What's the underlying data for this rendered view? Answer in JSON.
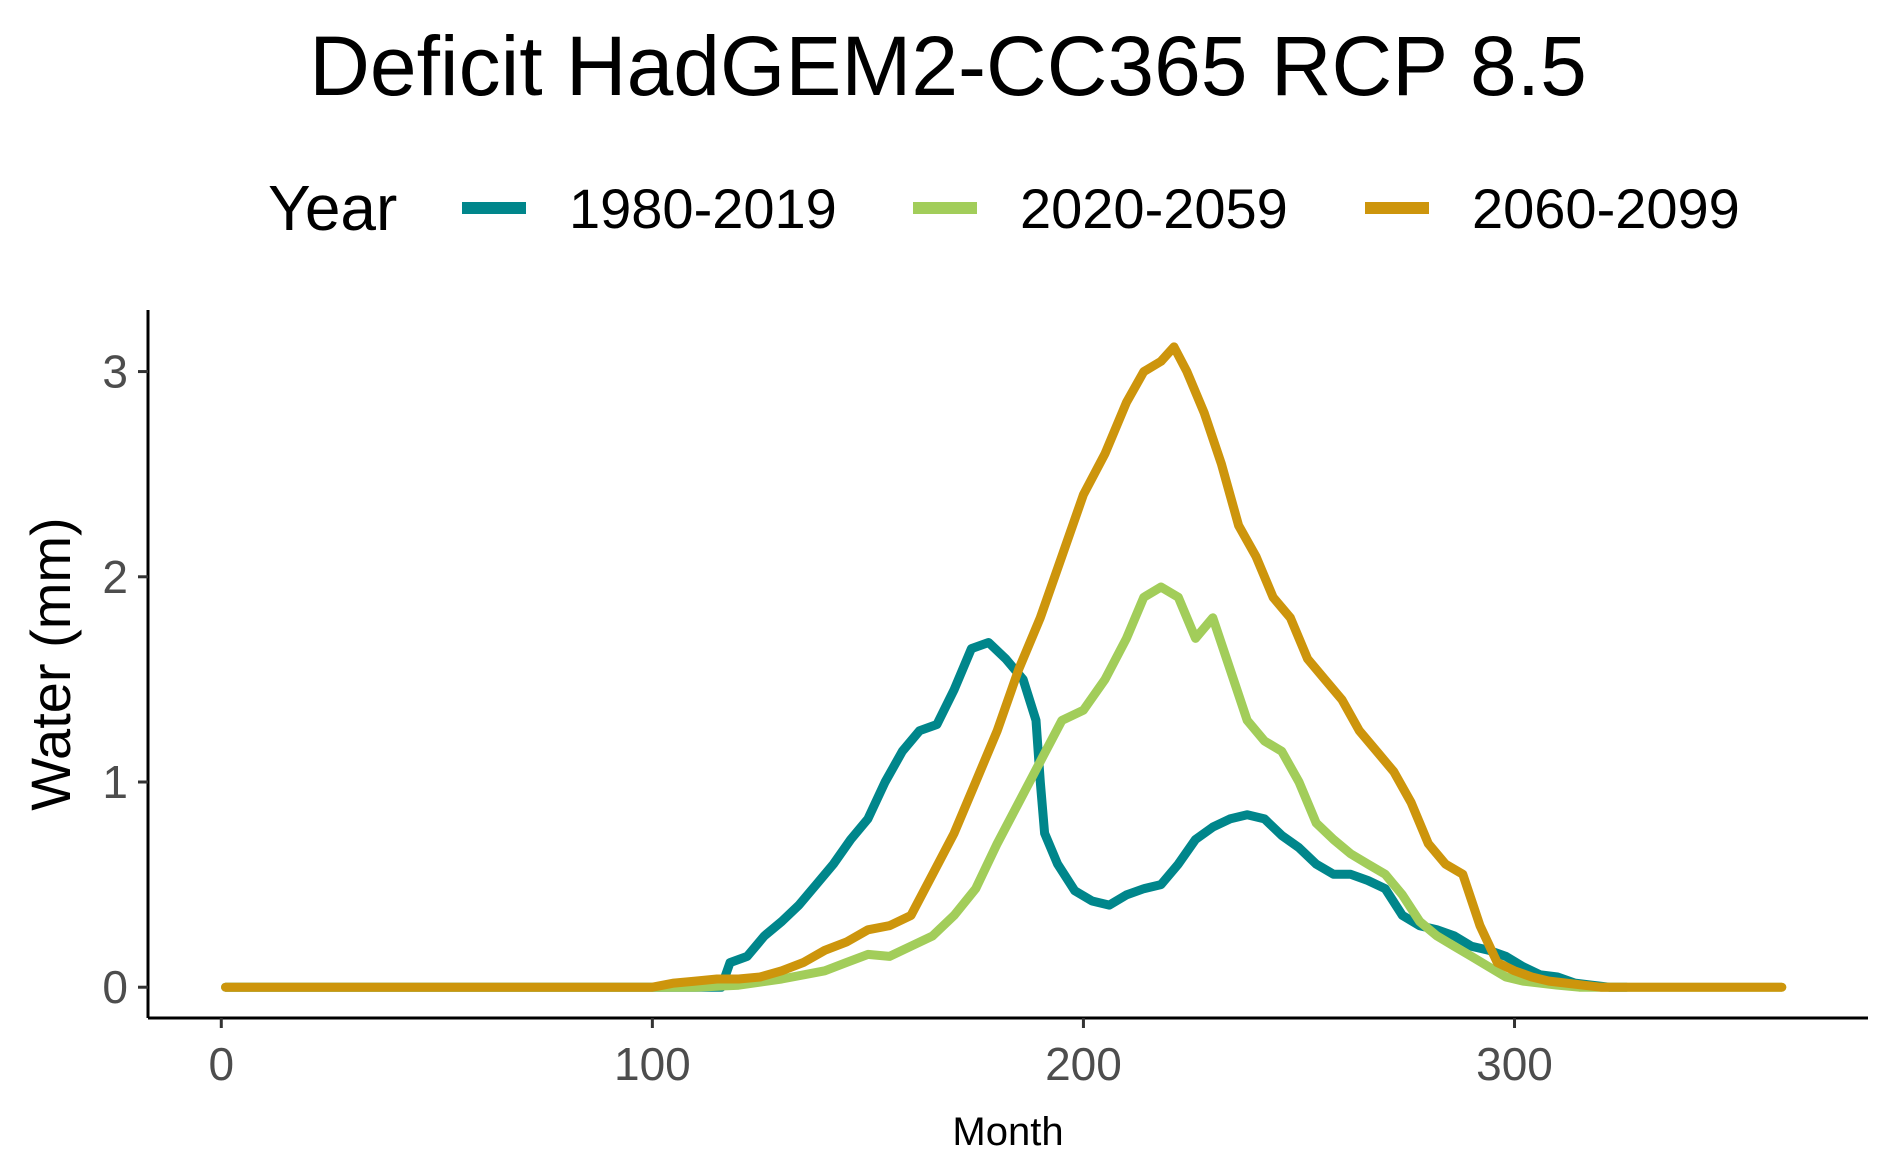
{
  "chart_data": {
    "type": "line",
    "title": "Deficit HadGEM2-CC365 RCP 8.5",
    "xlabel": "Month",
    "ylabel": "Water (mm)",
    "xlim": [
      -17,
      382
    ],
    "ylim": [
      -0.15,
      3.3
    ],
    "xticks": [
      0,
      100,
      200,
      300
    ],
    "yticks": [
      0,
      1,
      2,
      3
    ],
    "grid": false,
    "legend": {
      "title": "Year",
      "position": "top"
    },
    "series": [
      {
        "name": "1980-2019",
        "color": "#00868B",
        "x": [
          1,
          100,
          110,
          116,
          118,
          122,
          126,
          130,
          134,
          138,
          142,
          146,
          150,
          154,
          158,
          162,
          166,
          170,
          174,
          178,
          182,
          186,
          189,
          190,
          191,
          194,
          198,
          202,
          206,
          210,
          214,
          218,
          222,
          226,
          230,
          234,
          238,
          242,
          246,
          250,
          254,
          258,
          262,
          266,
          270,
          274,
          278,
          282,
          286,
          290,
          294,
          298,
          302,
          306,
          310,
          314,
          318,
          322,
          326
        ],
        "values": [
          0,
          0,
          0,
          0,
          0.12,
          0.15,
          0.25,
          0.32,
          0.4,
          0.5,
          0.6,
          0.72,
          0.82,
          1.0,
          1.15,
          1.25,
          1.28,
          1.45,
          1.65,
          1.68,
          1.6,
          1.5,
          1.3,
          1.0,
          0.75,
          0.6,
          0.47,
          0.42,
          0.4,
          0.45,
          0.48,
          0.5,
          0.6,
          0.72,
          0.78,
          0.82,
          0.84,
          0.82,
          0.74,
          0.68,
          0.6,
          0.55,
          0.55,
          0.52,
          0.48,
          0.35,
          0.3,
          0.28,
          0.25,
          0.2,
          0.18,
          0.15,
          0.1,
          0.06,
          0.05,
          0.02,
          0.01,
          0,
          0
        ]
      },
      {
        "name": "2020-2059",
        "color": "#A2CD5A",
        "x": [
          1,
          110,
          120,
          130,
          140,
          145,
          150,
          155,
          160,
          165,
          170,
          175,
          180,
          185,
          190,
          195,
          200,
          205,
          210,
          214,
          218,
          222,
          226,
          230,
          234,
          238,
          242,
          246,
          250,
          254,
          258,
          262,
          266,
          270,
          274,
          278,
          282,
          286,
          290,
          294,
          298,
          302,
          306,
          310,
          315,
          330,
          362
        ],
        "values": [
          0,
          0,
          0.01,
          0.04,
          0.08,
          0.12,
          0.16,
          0.15,
          0.2,
          0.25,
          0.35,
          0.48,
          0.7,
          0.9,
          1.1,
          1.3,
          1.35,
          1.5,
          1.7,
          1.9,
          1.95,
          1.9,
          1.7,
          1.8,
          1.55,
          1.3,
          1.2,
          1.15,
          1.0,
          0.8,
          0.72,
          0.65,
          0.6,
          0.55,
          0.45,
          0.32,
          0.25,
          0.2,
          0.15,
          0.1,
          0.05,
          0.03,
          0.02,
          0.01,
          0,
          0,
          0
        ]
      },
      {
        "name": "2060-2099",
        "color": "#CD950C",
        "x": [
          1,
          100,
          105,
          110,
          115,
          120,
          125,
          130,
          135,
          140,
          145,
          150,
          155,
          160,
          165,
          170,
          175,
          180,
          185,
          190,
          195,
          200,
          205,
          210,
          214,
          218,
          221,
          224,
          228,
          232,
          236,
          240,
          244,
          248,
          252,
          256,
          260,
          264,
          268,
          272,
          276,
          280,
          284,
          288,
          292,
          296,
          300,
          304,
          308,
          312,
          316,
          320,
          330,
          362
        ],
        "values": [
          0,
          0,
          0.02,
          0.03,
          0.04,
          0.04,
          0.05,
          0.08,
          0.12,
          0.18,
          0.22,
          0.28,
          0.3,
          0.35,
          0.55,
          0.75,
          1.0,
          1.25,
          1.55,
          1.8,
          2.1,
          2.4,
          2.6,
          2.85,
          3.0,
          3.05,
          3.12,
          3.0,
          2.8,
          2.55,
          2.25,
          2.1,
          1.9,
          1.8,
          1.6,
          1.5,
          1.4,
          1.25,
          1.15,
          1.05,
          0.9,
          0.7,
          0.6,
          0.55,
          0.3,
          0.12,
          0.08,
          0.05,
          0.03,
          0.02,
          0.01,
          0,
          0,
          0
        ]
      }
    ]
  }
}
